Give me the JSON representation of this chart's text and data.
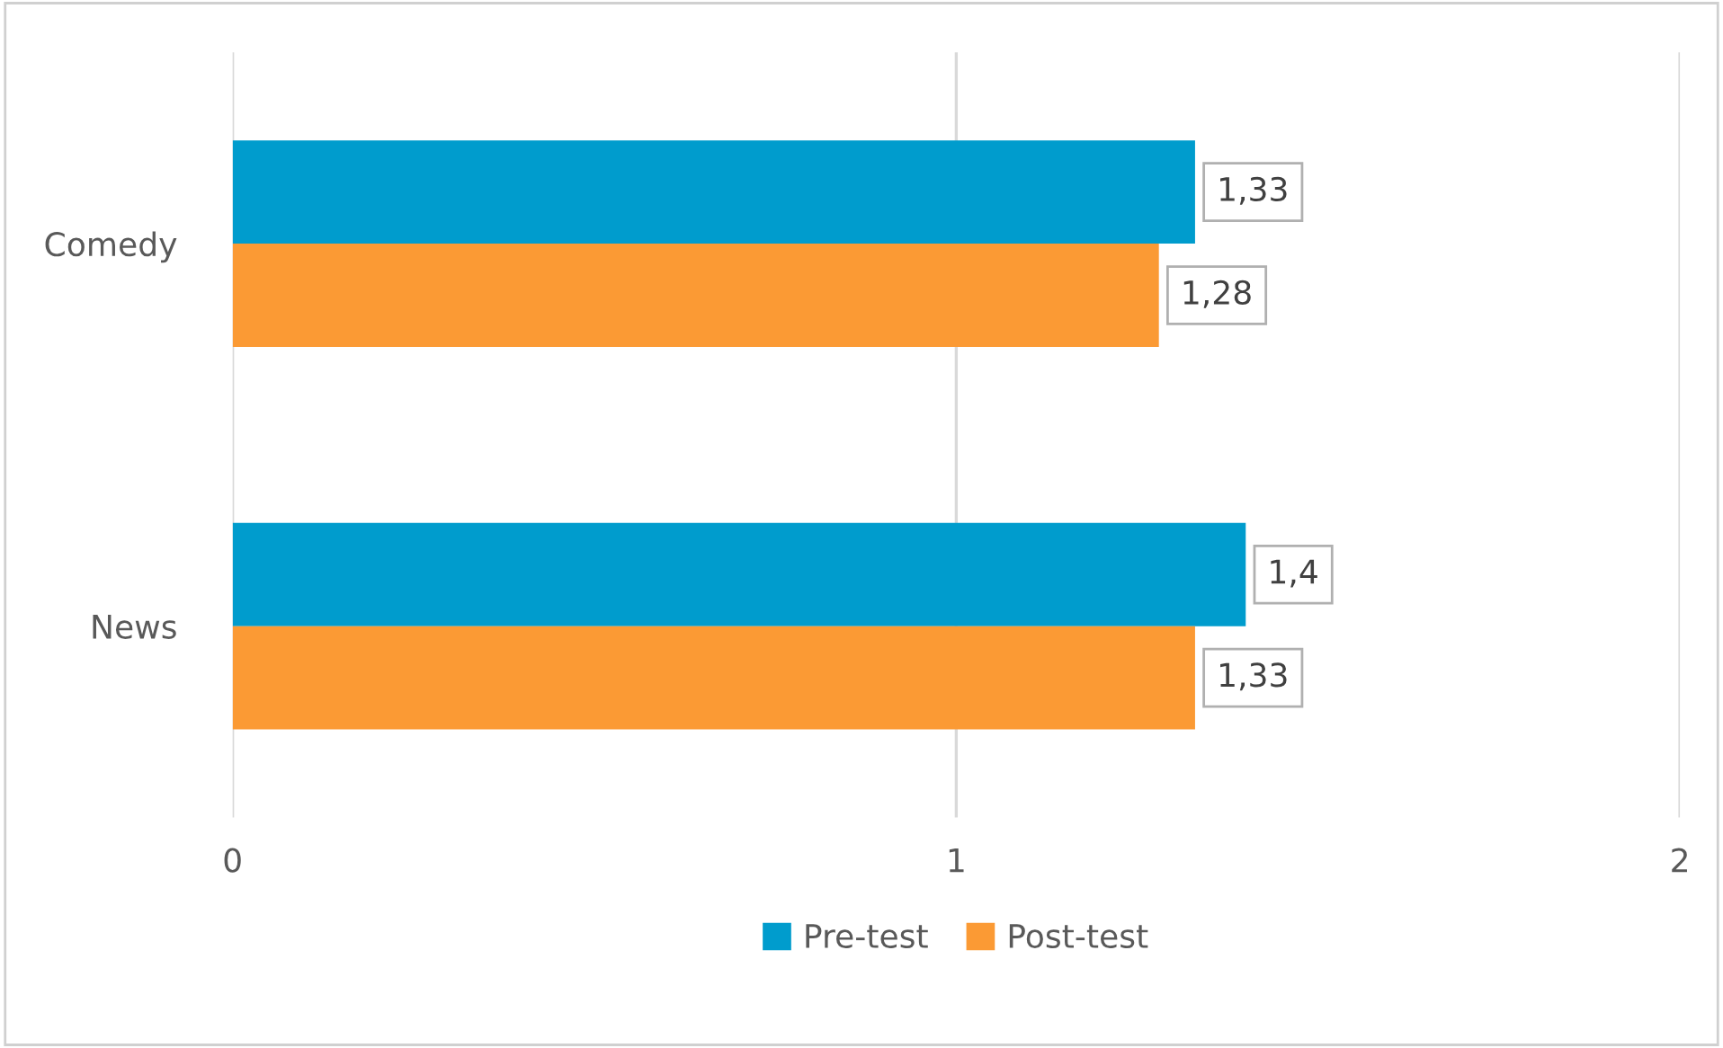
{
  "chart_data": {
    "type": "bar",
    "orientation": "horizontal",
    "categories": [
      "Comedy",
      "News"
    ],
    "series": [
      {
        "name": "Pre-test",
        "color": "#009ccd",
        "values": [
          1.33,
          1.4
        ],
        "value_labels": [
          "1,33",
          "1,4"
        ]
      },
      {
        "name": "Post-test",
        "color": "#fb9a34",
        "values": [
          1.28,
          1.33
        ],
        "value_labels": [
          "1,28",
          "1,33"
        ]
      }
    ],
    "xlim": [
      0,
      2
    ],
    "xticks": [
      0,
      1,
      2
    ],
    "grid": "x",
    "legend": "bottom"
  }
}
